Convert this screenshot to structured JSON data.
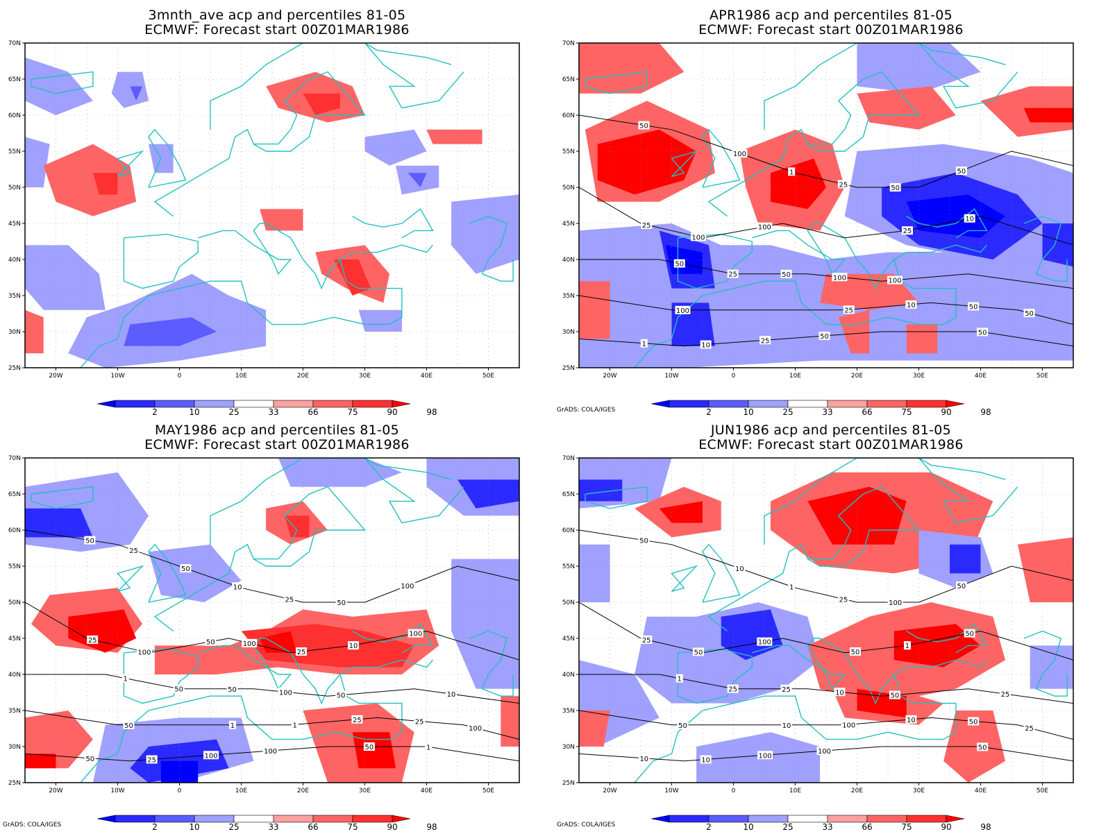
{
  "panels": [
    {
      "title": "3mnth_ave acp and percentiles 81-05",
      "subtitle": "ECMWF: Forecast start 00Z01MAR1986",
      "credit": "",
      "has_contours": false,
      "contour_labels": []
    },
    {
      "title": "APR1986 acp and percentiles 81-05",
      "subtitle": "ECMWF: Forecast start 00Z01MAR1986",
      "credit": "GrADS: COLA/IGES",
      "has_contours": true,
      "contour_labels": [
        "50",
        "100",
        "100",
        "100",
        "50",
        "50",
        "100",
        "100",
        "50",
        "25",
        "50",
        "25",
        "50",
        "50",
        "10",
        "25",
        "10",
        "25",
        "10",
        "1",
        "1",
        "25",
        "50",
        "25",
        "50",
        "100"
      ]
    },
    {
      "title": "MAY1986 acp and percentiles 81-05",
      "subtitle": "ECMWF: Forecast start 00Z01MAR1986",
      "credit": "GrADS: COLA/IGES",
      "has_contours": true,
      "contour_labels": [
        "50",
        "50",
        "50",
        "50",
        "100",
        "100",
        "100",
        "100",
        "100",
        "100",
        "50",
        "25",
        "50",
        "25",
        "25",
        "25",
        "100",
        "50",
        "25",
        "50",
        "10",
        "10",
        "1",
        "1",
        "1",
        "50",
        "25",
        "10",
        "1",
        "50",
        "25",
        "100"
      ]
    },
    {
      "title": "JUN1986 acp and percentiles 81-05",
      "subtitle": "ECMWF: Forecast start 00Z01MAR1986",
      "credit": "GrADS: COLA/IGES",
      "has_contours": true,
      "contour_labels": [
        "50",
        "100",
        "50",
        "50",
        "100",
        "50",
        "50",
        "10",
        "25",
        "100",
        "100",
        "25",
        "25",
        "50",
        "10",
        "25",
        "50",
        "25",
        "10",
        "10",
        "1",
        "1",
        "1",
        "100",
        "50",
        "10",
        "50",
        "25",
        "10"
      ]
    }
  ],
  "map": {
    "x_ticks": [
      "20W",
      "10W",
      "0",
      "10E",
      "20E",
      "30E",
      "40E",
      "50E"
    ],
    "y_ticks": [
      "70N",
      "65N",
      "60N",
      "55N",
      "50N",
      "45N",
      "40N",
      "35N",
      "30N",
      "25N"
    ],
    "lon_range": [
      -25,
      55
    ],
    "lat_range": [
      25,
      70
    ]
  },
  "colorbar": {
    "labels": [
      "2",
      "10",
      "25",
      "33",
      "66",
      "75",
      "90",
      "98"
    ],
    "colors": [
      "#0000ff",
      "#2a2aff",
      "#5c5cff",
      "#a0a0ff",
      "#ffffff",
      "#ffa0a0",
      "#ff6464",
      "#ff3030",
      "#ff0000"
    ]
  },
  "colors": {
    "coast": "#20c0c0",
    "contour": "#000000",
    "grid": "#888888"
  },
  "chart_data": [
    {
      "type": "heatmap",
      "title": "3mnth_ave acp and percentiles 81-05",
      "subtitle": "ECMWF: Forecast start 00Z01MAR1986",
      "legend_categories": [
        "2",
        "10",
        "25",
        "33",
        "66",
        "75",
        "90",
        "98"
      ]
    },
    {
      "type": "heatmap",
      "title": "APR1986 acp and percentiles 81-05",
      "subtitle": "ECMWF: Forecast start 00Z01MAR1986",
      "legend_categories": [
        "2",
        "10",
        "25",
        "33",
        "66",
        "75",
        "90",
        "98"
      ]
    },
    {
      "type": "heatmap",
      "title": "MAY1986 acp and percentiles 81-05",
      "subtitle": "ECMWF: Forecast start 00Z01MAR1986",
      "legend_categories": [
        "2",
        "10",
        "25",
        "33",
        "66",
        "75",
        "90",
        "98"
      ]
    },
    {
      "type": "heatmap",
      "title": "JUN1986 acp and percentiles 81-05",
      "subtitle": "ECMWF: Forecast start 00Z01MAR1986",
      "legend_categories": [
        "2",
        "10",
        "25",
        "33",
        "66",
        "75",
        "90",
        "98"
      ]
    }
  ]
}
